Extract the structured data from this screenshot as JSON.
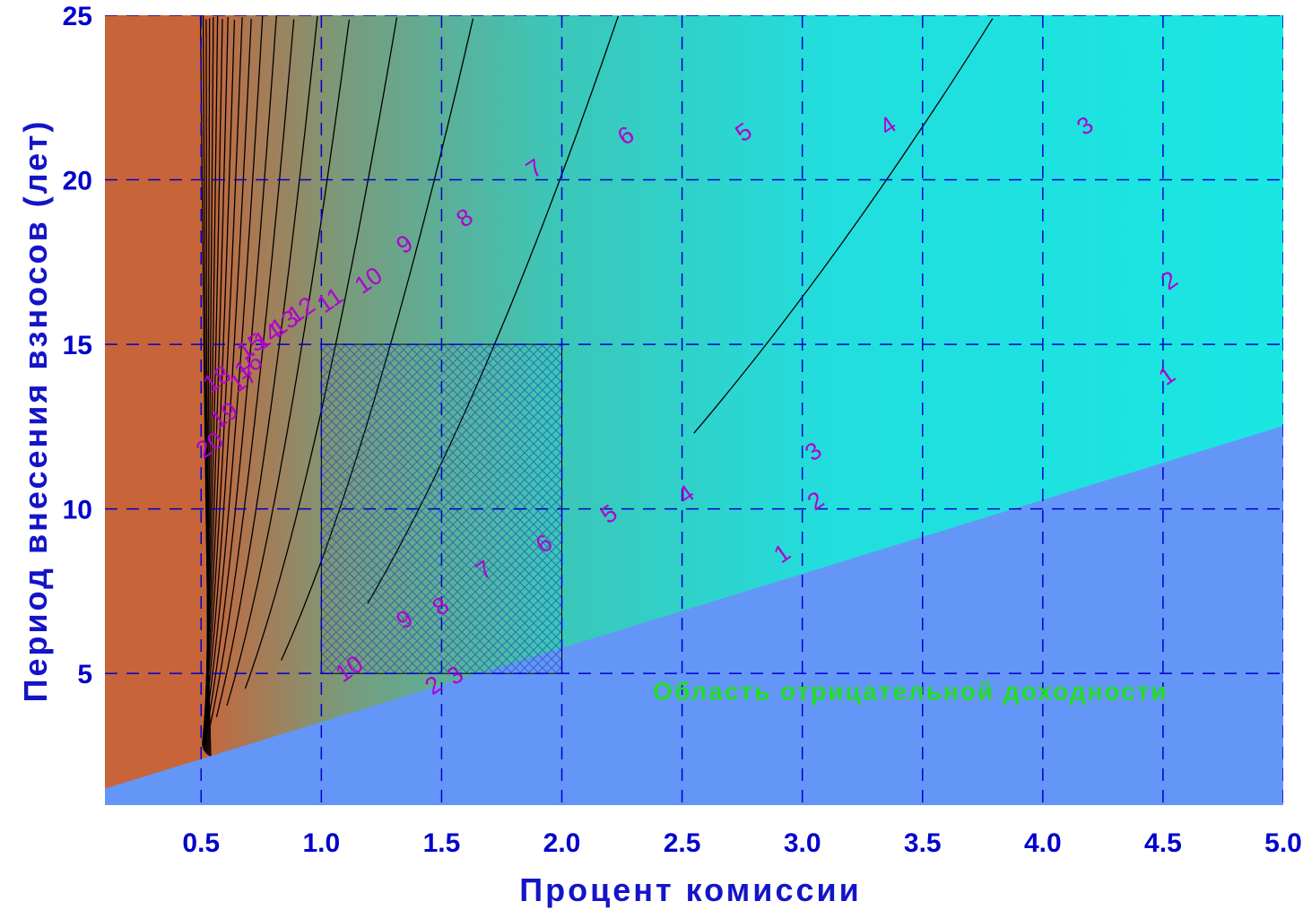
{
  "chart_data": {
    "type": "contour",
    "xlabel": "Процент комиссии",
    "ylabel": "Период внесения взносов (лет)",
    "xlim": [
      0.1,
      5.0
    ],
    "ylim": [
      1,
      25
    ],
    "x_ticks": [
      "0.5",
      "1.0",
      "1.5",
      "2.0",
      "2.5",
      "3.0",
      "3.5",
      "4.0",
      "4.5",
      "5.0"
    ],
    "y_ticks": [
      "5",
      "10",
      "15",
      "20",
      "25"
    ],
    "grid": "dashed",
    "highlight_region": {
      "x": [
        1.0,
        2.0
      ],
      "y": [
        5,
        15
      ],
      "pattern": "crosshatch"
    },
    "negative_region_label": "Область отрицательной доходности",
    "contour_levels": [
      1,
      2,
      3,
      4,
      5,
      6,
      7,
      8,
      9,
      10,
      11,
      12,
      13,
      14,
      15,
      16,
      17,
      18,
      19,
      20
    ],
    "contour_labels": [
      {
        "text": "1",
        "x": 2.92,
        "y": 8.6
      },
      {
        "text": "2",
        "x": 3.06,
        "y": 10.2
      },
      {
        "text": "3",
        "x": 3.05,
        "y": 11.7
      },
      {
        "text": "4",
        "x": 2.52,
        "y": 10.4
      },
      {
        "text": "5",
        "x": 2.2,
        "y": 9.8
      },
      {
        "text": "6",
        "x": 1.93,
        "y": 8.9
      },
      {
        "text": "7",
        "x": 1.68,
        "y": 8.1
      },
      {
        "text": "8",
        "x": 1.5,
        "y": 7.0
      },
      {
        "text": "9",
        "x": 1.35,
        "y": 6.6
      },
      {
        "text": "10",
        "x": 1.12,
        "y": 5.1
      },
      {
        "text": "2",
        "x": 1.47,
        "y": 4.6
      },
      {
        "text": "3",
        "x": 1.56,
        "y": 4.9
      },
      {
        "text": "1",
        "x": 4.52,
        "y": 14.0
      },
      {
        "text": "2",
        "x": 4.53,
        "y": 16.9
      },
      {
        "text": "3",
        "x": 4.18,
        "y": 21.6
      },
      {
        "text": "4",
        "x": 3.36,
        "y": 21.6
      },
      {
        "text": "5",
        "x": 2.76,
        "y": 21.4
      },
      {
        "text": "6",
        "x": 2.27,
        "y": 21.3
      },
      {
        "text": "7",
        "x": 1.89,
        "y": 20.3
      },
      {
        "text": "8",
        "x": 1.6,
        "y": 18.8
      },
      {
        "text": "9",
        "x": 1.35,
        "y": 18.0
      },
      {
        "text": "10",
        "x": 1.2,
        "y": 16.9
      },
      {
        "text": "11",
        "x": 1.04,
        "y": 16.3
      },
      {
        "text": "12",
        "x": 0.92,
        "y": 16.0
      },
      {
        "text": "13",
        "x": 0.85,
        "y": 15.6
      },
      {
        "text": "14",
        "x": 0.78,
        "y": 15.2
      },
      {
        "text": "15",
        "x": 0.71,
        "y": 14.9
      },
      {
        "text": "16",
        "x": 0.7,
        "y": 14.3
      },
      {
        "text": "17",
        "x": 0.68,
        "y": 13.9
      },
      {
        "text": "18",
        "x": 0.57,
        "y": 13.9
      },
      {
        "text": "19",
        "x": 0.6,
        "y": 12.8
      },
      {
        "text": "20",
        "x": 0.54,
        "y": 11.9
      }
    ],
    "colors": {
      "high_return": "#c8643a",
      "mid_return": "#3cc6b8",
      "low_return": "#14f2ee",
      "negative_region": "#6496f8",
      "contour_line": "#000000",
      "contour_label": "#b000d0",
      "grid": "#0000cc",
      "region_label": "#22dd22"
    }
  }
}
